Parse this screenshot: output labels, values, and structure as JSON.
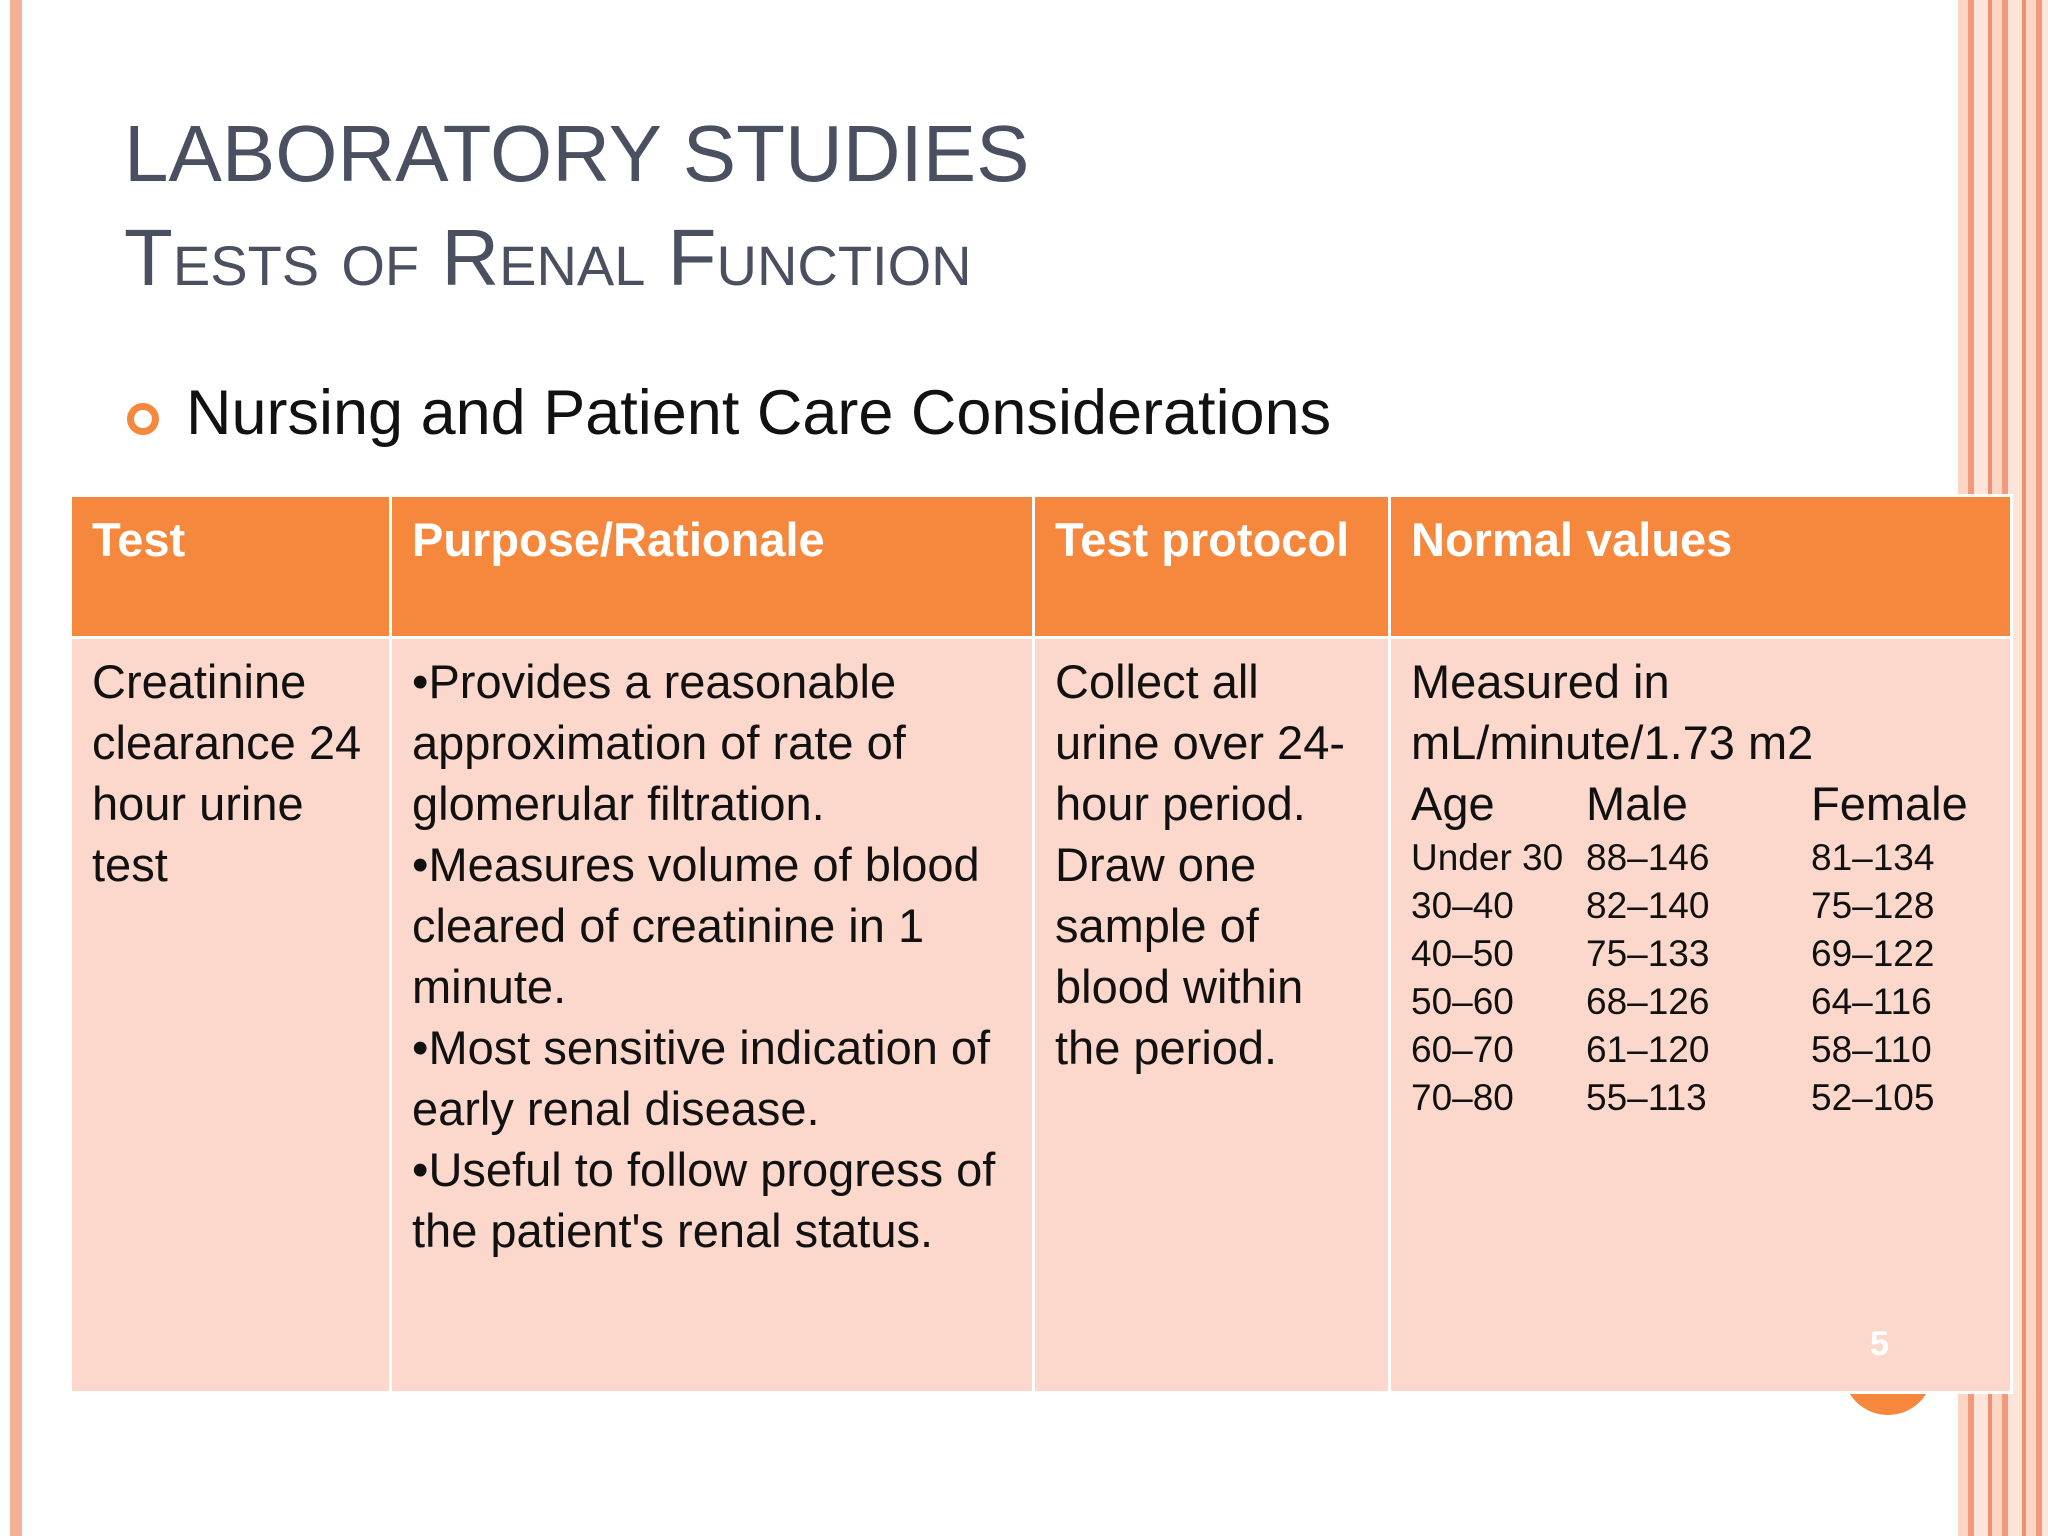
{
  "slide": {
    "title": "LABORATORY STUDIES",
    "subtitle": "Tests of Renal Function",
    "bullet": "Nursing and Patient Care Considerations",
    "page_number": "5"
  },
  "table": {
    "header": [
      "Test",
      "Purpose/Rationale",
      "Test protocol",
      "Normal values"
    ],
    "test": "Creatinine clearance 24 hour urine test",
    "purpose": [
      "•Provides a reasonable approximation of rate of glomerular filtration.",
      "•Measures volume of blood cleared of creatinine in 1 minute.",
      "•Most sensitive indication of early renal disease.",
      "•Useful to follow progress of the patient's renal status."
    ],
    "protocol": "Collect all urine over 24-hour period. Draw one sample of blood within the period.",
    "normal_values": {
      "intro": "Measured in mL/minute/1.73 m2",
      "columns": [
        "Age",
        "Male",
        "Female"
      ],
      "rows": [
        [
          "Under 30",
          "88–146",
          "81–134"
        ],
        [
          "30–40",
          "82–140",
          "75–128"
        ],
        [
          "40–50",
          "75–133",
          "69–122"
        ],
        [
          "50–60",
          "68–126",
          "64–116"
        ],
        [
          "60–70",
          "61–120",
          "58–110"
        ],
        [
          "70–80",
          "55–113",
          "52–105"
        ]
      ]
    }
  }
}
